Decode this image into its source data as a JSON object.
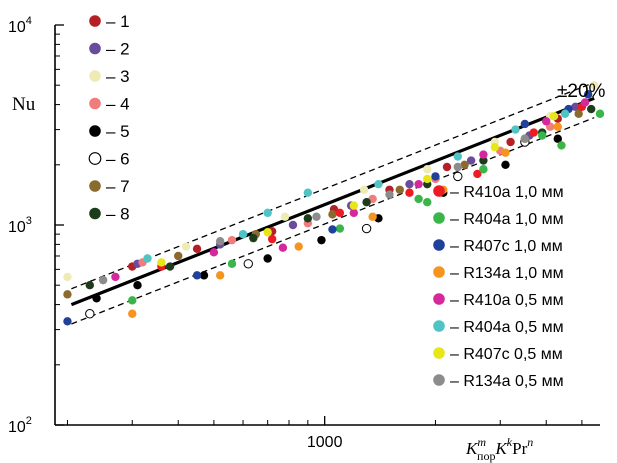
{
  "chart_data": {
    "type": "scatter",
    "title": "",
    "xlabel": {
      "base1": "K",
      "sup1": "m",
      "sub1": "пор",
      "base2": "K",
      "sup2": "k",
      "base3": "Pr",
      "sup3": "n"
    },
    "ylabel": "Nu",
    "x_scale": "log",
    "y_scale": "log",
    "xlim": [
      185,
      5600
    ],
    "ylim": [
      100,
      10000
    ],
    "x_ticks": [
      {
        "value": 1000,
        "label": "1000"
      }
    ],
    "y_ticks": [
      {
        "value": 100,
        "base": "10",
        "exp": "2"
      },
      {
        "value": 1000,
        "base": "10",
        "exp": "3"
      },
      {
        "value": 10000,
        "base": "10",
        "exp": "4"
      }
    ],
    "band_label": "±20%",
    "band_fraction": 0.2,
    "fit_line": {
      "x": [
        205,
        5400
      ],
      "y": [
        400,
        4300
      ]
    },
    "series": [
      {
        "name": "– 1",
        "color": "#b52026",
        "hollow": false,
        "points": [
          [
            300,
            620
          ],
          [
            450,
            760
          ],
          [
            720,
            930
          ],
          [
            1060,
            1200
          ],
          [
            1500,
            1500
          ],
          [
            2150,
            1950
          ],
          [
            3200,
            2600
          ],
          [
            4300,
            3400
          ]
        ]
      },
      {
        "name": "– 2",
        "color": "#6a4c9c",
        "hollow": false,
        "points": [
          [
            310,
            640
          ],
          [
            520,
            800
          ],
          [
            820,
            1000
          ],
          [
            1180,
            1250
          ],
          [
            1700,
            1600
          ],
          [
            2500,
            2100
          ],
          [
            3600,
            2800
          ],
          [
            4800,
            3900
          ]
        ]
      },
      {
        "name": "– 3",
        "color": "#eeebb4",
        "hollow": false,
        "points": [
          [
            200,
            550
          ],
          [
            420,
            780
          ],
          [
            780,
            1100
          ],
          [
            1280,
            1500
          ],
          [
            1900,
            1900
          ],
          [
            2900,
            2600
          ],
          [
            4100,
            3500
          ],
          [
            5400,
            5000
          ]
        ]
      },
      {
        "name": "– 4",
        "color": "#f07c7c",
        "hollow": false,
        "points": [
          [
            320,
            650
          ],
          [
            560,
            840
          ],
          [
            900,
            1020
          ],
          [
            1350,
            1350
          ],
          [
            2000,
            1700
          ],
          [
            3000,
            2350
          ],
          [
            4100,
            3100
          ]
        ]
      },
      {
        "name": "– 5",
        "color": "#000000",
        "hollow": false,
        "points": [
          [
            240,
            430
          ],
          [
            310,
            500
          ],
          [
            470,
            560
          ],
          [
            700,
            680
          ],
          [
            980,
            840
          ],
          [
            1400,
            1080
          ],
          [
            2100,
            1450
          ],
          [
            3100,
            2000
          ],
          [
            4300,
            2700
          ]
        ]
      },
      {
        "name": "– 6",
        "color": "#ffffff",
        "hollow": true,
        "points": [
          [
            230,
            360
          ],
          [
            620,
            640
          ],
          [
            1300,
            960
          ],
          [
            2300,
            1750
          ],
          [
            3500,
            2600
          ]
        ]
      },
      {
        "name": "– 7",
        "color": "#8b6a2e",
        "hollow": false,
        "points": [
          [
            200,
            450
          ],
          [
            400,
            700
          ],
          [
            650,
            900
          ],
          [
            1050,
            1130
          ],
          [
            1600,
            1500
          ],
          [
            2400,
            2000
          ],
          [
            3500,
            2700
          ],
          [
            4900,
            3600
          ]
        ]
      },
      {
        "name": "– 8",
        "color": "#1b3d1b",
        "hollow": false,
        "points": [
          [
            230,
            500
          ],
          [
            380,
            620
          ],
          [
            640,
            860
          ],
          [
            900,
            1080
          ],
          [
            1300,
            1300
          ],
          [
            1900,
            1600
          ],
          [
            2700,
            2100
          ],
          [
            3900,
            2900
          ],
          [
            5300,
            3800
          ]
        ]
      },
      {
        "name": "– R410a 1,0 мм",
        "color": "#ed1c24",
        "hollow": false,
        "points": [
          [
            360,
            620
          ],
          [
            720,
            850
          ],
          [
            1100,
            1150
          ],
          [
            1700,
            1450
          ],
          [
            2600,
            1800
          ],
          [
            3700,
            2900
          ],
          [
            5000,
            3900
          ]
        ]
      },
      {
        "name": "– R404a 1,0 мм",
        "color": "#3ab54a",
        "hollow": false,
        "points": [
          [
            300,
            420
          ],
          [
            560,
            640
          ],
          [
            1100,
            960
          ],
          [
            1800,
            1350
          ],
          [
            2700,
            1900
          ],
          [
            3900,
            2800
          ],
          [
            5600,
            3600
          ],
          [
            4400,
            2500
          ],
          [
            1900,
            1300
          ]
        ]
      },
      {
        "name": "– R407c 1,0 мм",
        "color": "#21409a",
        "hollow": false,
        "points": [
          [
            200,
            330
          ],
          [
            450,
            560
          ],
          [
            1050,
            950
          ],
          [
            2000,
            1750
          ],
          [
            3500,
            3200
          ],
          [
            5200,
            4500
          ],
          [
            4600,
            3800
          ]
        ]
      },
      {
        "name": "– R134a 1,0 мм",
        "color": "#f7941d",
        "hollow": false,
        "points": [
          [
            300,
            360
          ],
          [
            520,
            560
          ],
          [
            850,
            780
          ],
          [
            1350,
            1100
          ],
          [
            2100,
            1500
          ],
          [
            3100,
            2300
          ],
          [
            4300,
            3100
          ]
        ]
      },
      {
        "name": "– R410a 0,5 мм",
        "color": "#d6279d",
        "hollow": false,
        "points": [
          [
            270,
            550
          ],
          [
            500,
            730
          ],
          [
            770,
            770
          ],
          [
            1200,
            1150
          ],
          [
            1800,
            1600
          ],
          [
            2700,
            2250
          ],
          [
            4000,
            3300
          ],
          [
            5100,
            4100
          ]
        ]
      },
      {
        "name": "– R404a 0,5 мм",
        "color": "#4fc4c4",
        "hollow": false,
        "points": [
          [
            330,
            680
          ],
          [
            600,
            900
          ],
          [
            900,
            1450
          ],
          [
            1400,
            1600
          ],
          [
            2300,
            2200
          ],
          [
            3300,
            3000
          ],
          [
            4500,
            3600
          ],
          [
            700,
            1150
          ]
        ]
      },
      {
        "name": "– R407c 0,5 мм",
        "color": "#e6e619",
        "hollow": false,
        "points": [
          [
            360,
            650
          ],
          [
            700,
            920
          ],
          [
            1200,
            1250
          ],
          [
            1900,
            1700
          ],
          [
            2900,
            2450
          ],
          [
            4200,
            3500
          ]
        ]
      },
      {
        "name": "– R134a 0,5 мм",
        "color": "#8c8c8c",
        "hollow": false,
        "points": [
          [
            250,
            530
          ],
          [
            520,
            830
          ],
          [
            950,
            1100
          ],
          [
            1500,
            1420
          ],
          [
            2300,
            1950
          ],
          [
            3500,
            2700
          ]
        ]
      }
    ]
  }
}
